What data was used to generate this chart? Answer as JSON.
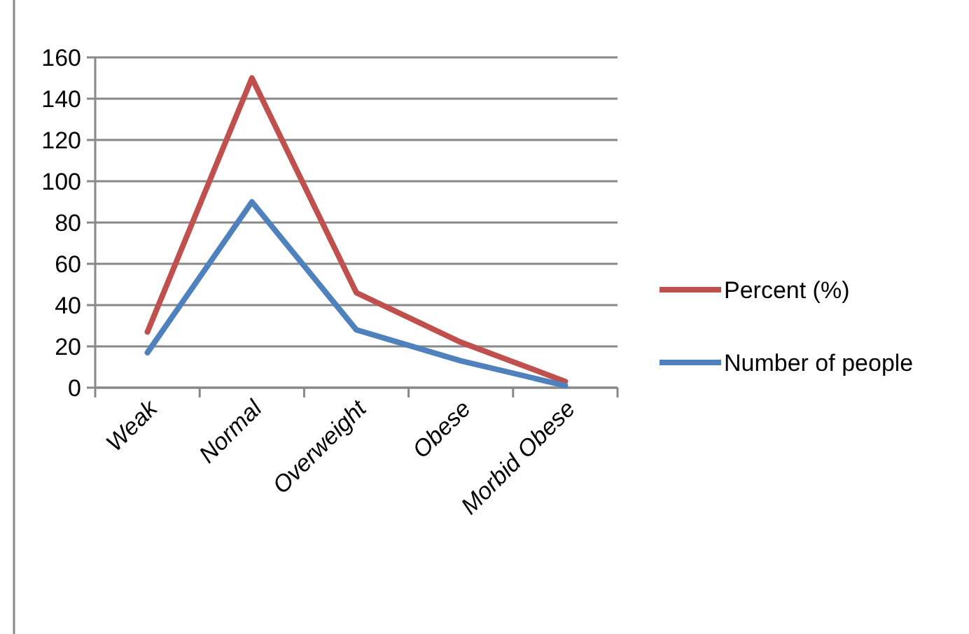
{
  "chart_data": {
    "type": "line",
    "categories": [
      "Weak",
      "Normal",
      "Overweight",
      "Obese",
      "Morbid Obese"
    ],
    "series": [
      {
        "name": "Percent (%)",
        "color": "#c0504d",
        "values": [
          27,
          150,
          46,
          22,
          3
        ]
      },
      {
        "name": "Number of people",
        "color": "#4f81bd",
        "values": [
          17,
          90,
          28,
          13,
          1
        ]
      }
    ],
    "ylim": [
      0,
      160
    ],
    "yticks": [
      0,
      20,
      40,
      60,
      80,
      100,
      120,
      140,
      160
    ],
    "grid": "y",
    "legend": "right",
    "marker": "none",
    "line_style": "solid"
  }
}
